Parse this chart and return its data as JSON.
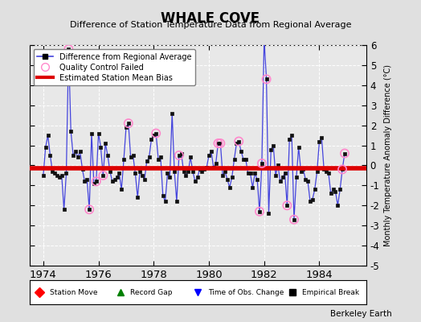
{
  "title": "WHALE COVE",
  "subtitle": "Difference of Station Temperature Data from Regional Average",
  "ylabel": "Monthly Temperature Anomaly Difference (°C)",
  "bias": -0.15,
  "ylim": [
    -5,
    6
  ],
  "xlim": [
    1973.5,
    1985.7
  ],
  "xticks": [
    1974,
    1976,
    1978,
    1980,
    1982,
    1984
  ],
  "yticks": [
    -5,
    -4,
    -3,
    -2,
    -1,
    0,
    1,
    2,
    3,
    4,
    5,
    6
  ],
  "background_color": "#e0e0e0",
  "plot_background": "#e8e8e8",
  "line_color": "#4444dd",
  "marker_color": "#111111",
  "qc_marker_color": "#ff88cc",
  "bias_color": "#dd0000",
  "data": [
    [
      1974.0,
      -0.5
    ],
    [
      1974.083,
      0.9
    ],
    [
      1974.167,
      1.5
    ],
    [
      1974.25,
      0.5
    ],
    [
      1974.333,
      -0.3
    ],
    [
      1974.417,
      -0.4
    ],
    [
      1974.5,
      -0.5
    ],
    [
      1974.583,
      -0.6
    ],
    [
      1974.667,
      -0.5
    ],
    [
      1974.75,
      -2.2
    ],
    [
      1974.833,
      -0.4
    ],
    [
      1974.917,
      5.8
    ],
    [
      1975.0,
      1.7
    ],
    [
      1975.083,
      0.5
    ],
    [
      1975.167,
      0.7
    ],
    [
      1975.25,
      0.4
    ],
    [
      1975.333,
      0.7
    ],
    [
      1975.417,
      -0.2
    ],
    [
      1975.5,
      -0.8
    ],
    [
      1975.583,
      -0.7
    ],
    [
      1975.667,
      -2.2
    ],
    [
      1975.75,
      1.6
    ],
    [
      1975.833,
      -0.9
    ],
    [
      1975.917,
      -0.8
    ],
    [
      1976.0,
      1.6
    ],
    [
      1976.083,
      0.9
    ],
    [
      1976.167,
      -0.5
    ],
    [
      1976.25,
      1.1
    ],
    [
      1976.333,
      0.5
    ],
    [
      1976.417,
      -0.3
    ],
    [
      1976.5,
      -0.8
    ],
    [
      1976.583,
      -0.7
    ],
    [
      1976.667,
      -0.6
    ],
    [
      1976.75,
      -0.4
    ],
    [
      1976.833,
      -1.2
    ],
    [
      1976.917,
      0.3
    ],
    [
      1977.0,
      1.9
    ],
    [
      1977.083,
      2.1
    ],
    [
      1977.167,
      0.4
    ],
    [
      1977.25,
      0.5
    ],
    [
      1977.333,
      -0.4
    ],
    [
      1977.417,
      -1.6
    ],
    [
      1977.5,
      -0.3
    ],
    [
      1977.583,
      -0.5
    ],
    [
      1977.667,
      -0.7
    ],
    [
      1977.75,
      0.2
    ],
    [
      1977.833,
      0.4
    ],
    [
      1977.917,
      1.3
    ],
    [
      1978.0,
      1.5
    ],
    [
      1978.083,
      1.6
    ],
    [
      1978.167,
      0.3
    ],
    [
      1978.25,
      0.4
    ],
    [
      1978.333,
      -1.5
    ],
    [
      1978.417,
      -1.8
    ],
    [
      1978.5,
      -0.4
    ],
    [
      1978.583,
      -0.6
    ],
    [
      1978.667,
      2.6
    ],
    [
      1978.75,
      -0.3
    ],
    [
      1978.833,
      -1.8
    ],
    [
      1978.917,
      0.5
    ],
    [
      1979.0,
      0.6
    ],
    [
      1979.083,
      -0.3
    ],
    [
      1979.167,
      -0.5
    ],
    [
      1979.25,
      -0.3
    ],
    [
      1979.333,
      0.4
    ],
    [
      1979.417,
      -0.3
    ],
    [
      1979.5,
      -0.8
    ],
    [
      1979.583,
      -0.6
    ],
    [
      1979.667,
      -0.2
    ],
    [
      1979.75,
      -0.3
    ],
    [
      1979.833,
      -0.2
    ],
    [
      1979.917,
      -0.1
    ],
    [
      1980.0,
      0.5
    ],
    [
      1980.083,
      0.7
    ],
    [
      1980.167,
      -0.1
    ],
    [
      1980.25,
      0.1
    ],
    [
      1980.333,
      1.1
    ],
    [
      1980.417,
      1.1
    ],
    [
      1980.5,
      -0.5
    ],
    [
      1980.583,
      -0.3
    ],
    [
      1980.667,
      -0.7
    ],
    [
      1980.75,
      -1.1
    ],
    [
      1980.833,
      -0.6
    ],
    [
      1980.917,
      0.3
    ],
    [
      1981.0,
      1.1
    ],
    [
      1981.083,
      1.2
    ],
    [
      1981.167,
      0.7
    ],
    [
      1981.25,
      0.3
    ],
    [
      1981.333,
      0.3
    ],
    [
      1981.417,
      -0.4
    ],
    [
      1981.5,
      -0.4
    ],
    [
      1981.583,
      -1.1
    ],
    [
      1981.667,
      -0.4
    ],
    [
      1981.75,
      -0.7
    ],
    [
      1981.833,
      -2.3
    ],
    [
      1981.917,
      0.1
    ],
    [
      1982.0,
      6.3
    ],
    [
      1982.083,
      4.3
    ],
    [
      1982.167,
      -2.4
    ],
    [
      1982.25,
      0.8
    ],
    [
      1982.333,
      1.0
    ],
    [
      1982.417,
      -0.5
    ],
    [
      1982.5,
      0.0
    ],
    [
      1982.583,
      -0.8
    ],
    [
      1982.667,
      -0.6
    ],
    [
      1982.75,
      -0.4
    ],
    [
      1982.833,
      -2.0
    ],
    [
      1982.917,
      1.3
    ],
    [
      1983.0,
      1.5
    ],
    [
      1983.083,
      -2.7
    ],
    [
      1983.167,
      -0.6
    ],
    [
      1983.25,
      0.9
    ],
    [
      1983.333,
      -0.3
    ],
    [
      1983.417,
      -0.2
    ],
    [
      1983.5,
      -0.7
    ],
    [
      1983.583,
      -0.8
    ],
    [
      1983.667,
      -1.8
    ],
    [
      1983.75,
      -1.7
    ],
    [
      1983.833,
      -1.2
    ],
    [
      1983.917,
      -0.3
    ],
    [
      1984.0,
      1.2
    ],
    [
      1984.083,
      1.4
    ],
    [
      1984.167,
      -0.2
    ],
    [
      1984.25,
      -0.3
    ],
    [
      1984.333,
      -0.4
    ],
    [
      1984.417,
      -1.4
    ],
    [
      1984.5,
      -1.2
    ],
    [
      1984.583,
      -1.3
    ],
    [
      1984.667,
      -2.0
    ],
    [
      1984.75,
      -1.2
    ],
    [
      1984.833,
      -0.2
    ],
    [
      1984.917,
      0.6
    ]
  ],
  "qc_failed": [
    [
      1974.917,
      5.8
    ],
    [
      1975.667,
      -2.2
    ],
    [
      1975.917,
      -0.8
    ],
    [
      1976.167,
      -0.5
    ],
    [
      1977.083,
      2.1
    ],
    [
      1978.083,
      1.6
    ],
    [
      1978.917,
      0.5
    ],
    [
      1980.333,
      1.1
    ],
    [
      1980.417,
      1.1
    ],
    [
      1981.083,
      1.2
    ],
    [
      1981.917,
      0.1
    ],
    [
      1982.083,
      4.3
    ],
    [
      1981.833,
      -2.3
    ],
    [
      1982.833,
      -2.0
    ],
    [
      1983.083,
      -2.7
    ],
    [
      1984.833,
      -0.2
    ],
    [
      1984.917,
      0.6
    ]
  ]
}
